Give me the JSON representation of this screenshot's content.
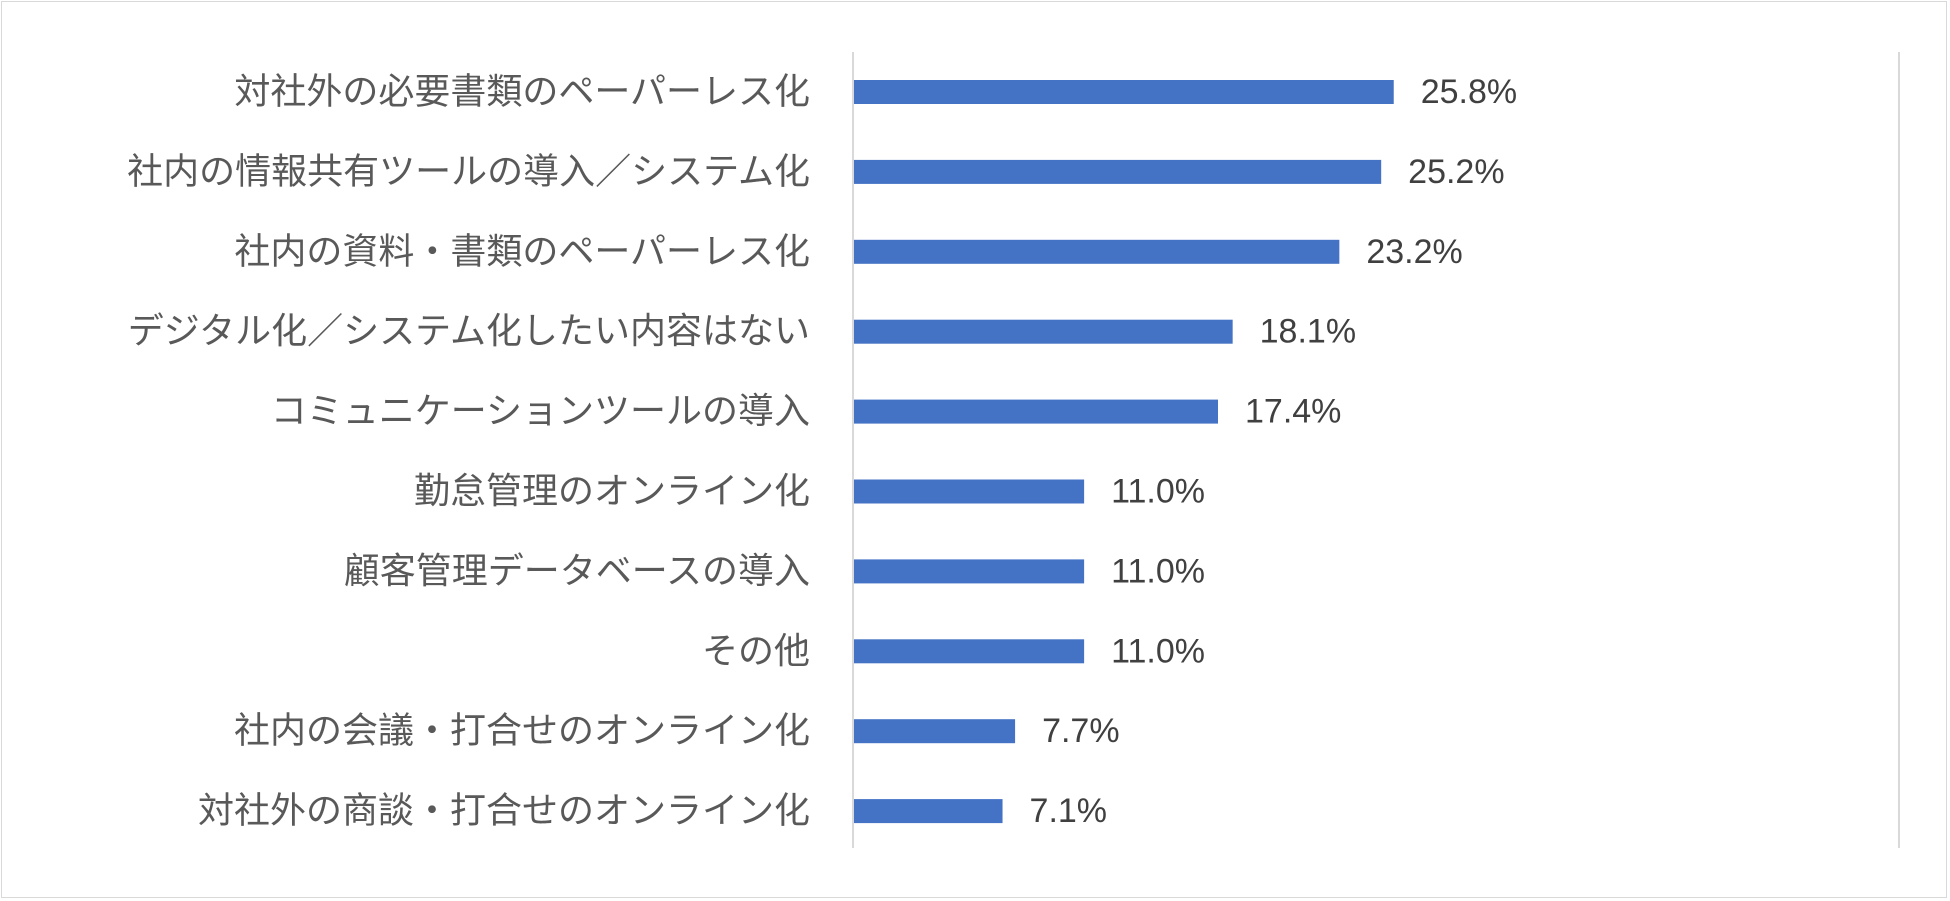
{
  "chart_data": {
    "type": "bar",
    "orientation": "horizontal",
    "title": "",
    "xlabel": "",
    "ylabel": "",
    "categories": [
      "対社外の必要書類のペーパーレス化",
      "社内の情報共有ツールの導入／システム化",
      "社内の資料・書類のペーパーレス化",
      "デジタル化／システム化したい内容はない",
      "コミュニケーションツールの導入",
      "勤怠管理のオンライン化",
      "顧客管理データベースの導入",
      "その他",
      "社内の会議・打合せのオンライン化",
      "対社外の商談・打合せのオンライン化"
    ],
    "values": [
      25.8,
      25.2,
      23.2,
      18.1,
      17.4,
      11.0,
      11.0,
      11.0,
      7.7,
      7.1
    ],
    "data_labels": [
      "25.8%",
      "25.2%",
      "23.2%",
      "18.1%",
      "17.4%",
      "11.0%",
      "11.0%",
      "11.0%",
      "7.7%",
      "7.1%"
    ],
    "xlim": [
      0,
      50
    ],
    "grid": false,
    "bar_color": "#4472C4",
    "axis_color": "#d9d9d9"
  }
}
